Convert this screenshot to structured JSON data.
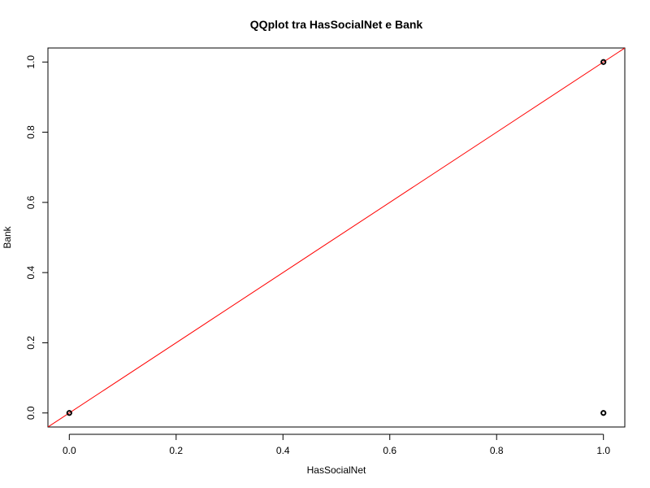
{
  "chart_data": {
    "type": "scatter",
    "title": "QQplot tra HasSocialNet e Bank",
    "xlabel": "HasSocialNet",
    "ylabel": "Bank",
    "xlim": [
      -0.04,
      1.04
    ],
    "ylim": [
      -0.04,
      1.04
    ],
    "x_ticks": [
      "0.0",
      "0.2",
      "0.4",
      "0.6",
      "0.8",
      "1.0"
    ],
    "y_ticks": [
      "0.0",
      "0.2",
      "0.4",
      "0.6",
      "0.8",
      "1.0"
    ],
    "points": [
      {
        "x": 0,
        "y": 0
      },
      {
        "x": 1,
        "y": 1
      },
      {
        "x": 1,
        "y": 0
      }
    ],
    "reference_line": {
      "intercept": 0,
      "slope": 1,
      "color": "#ff0000"
    },
    "point_color": "#000000",
    "grid": false
  }
}
